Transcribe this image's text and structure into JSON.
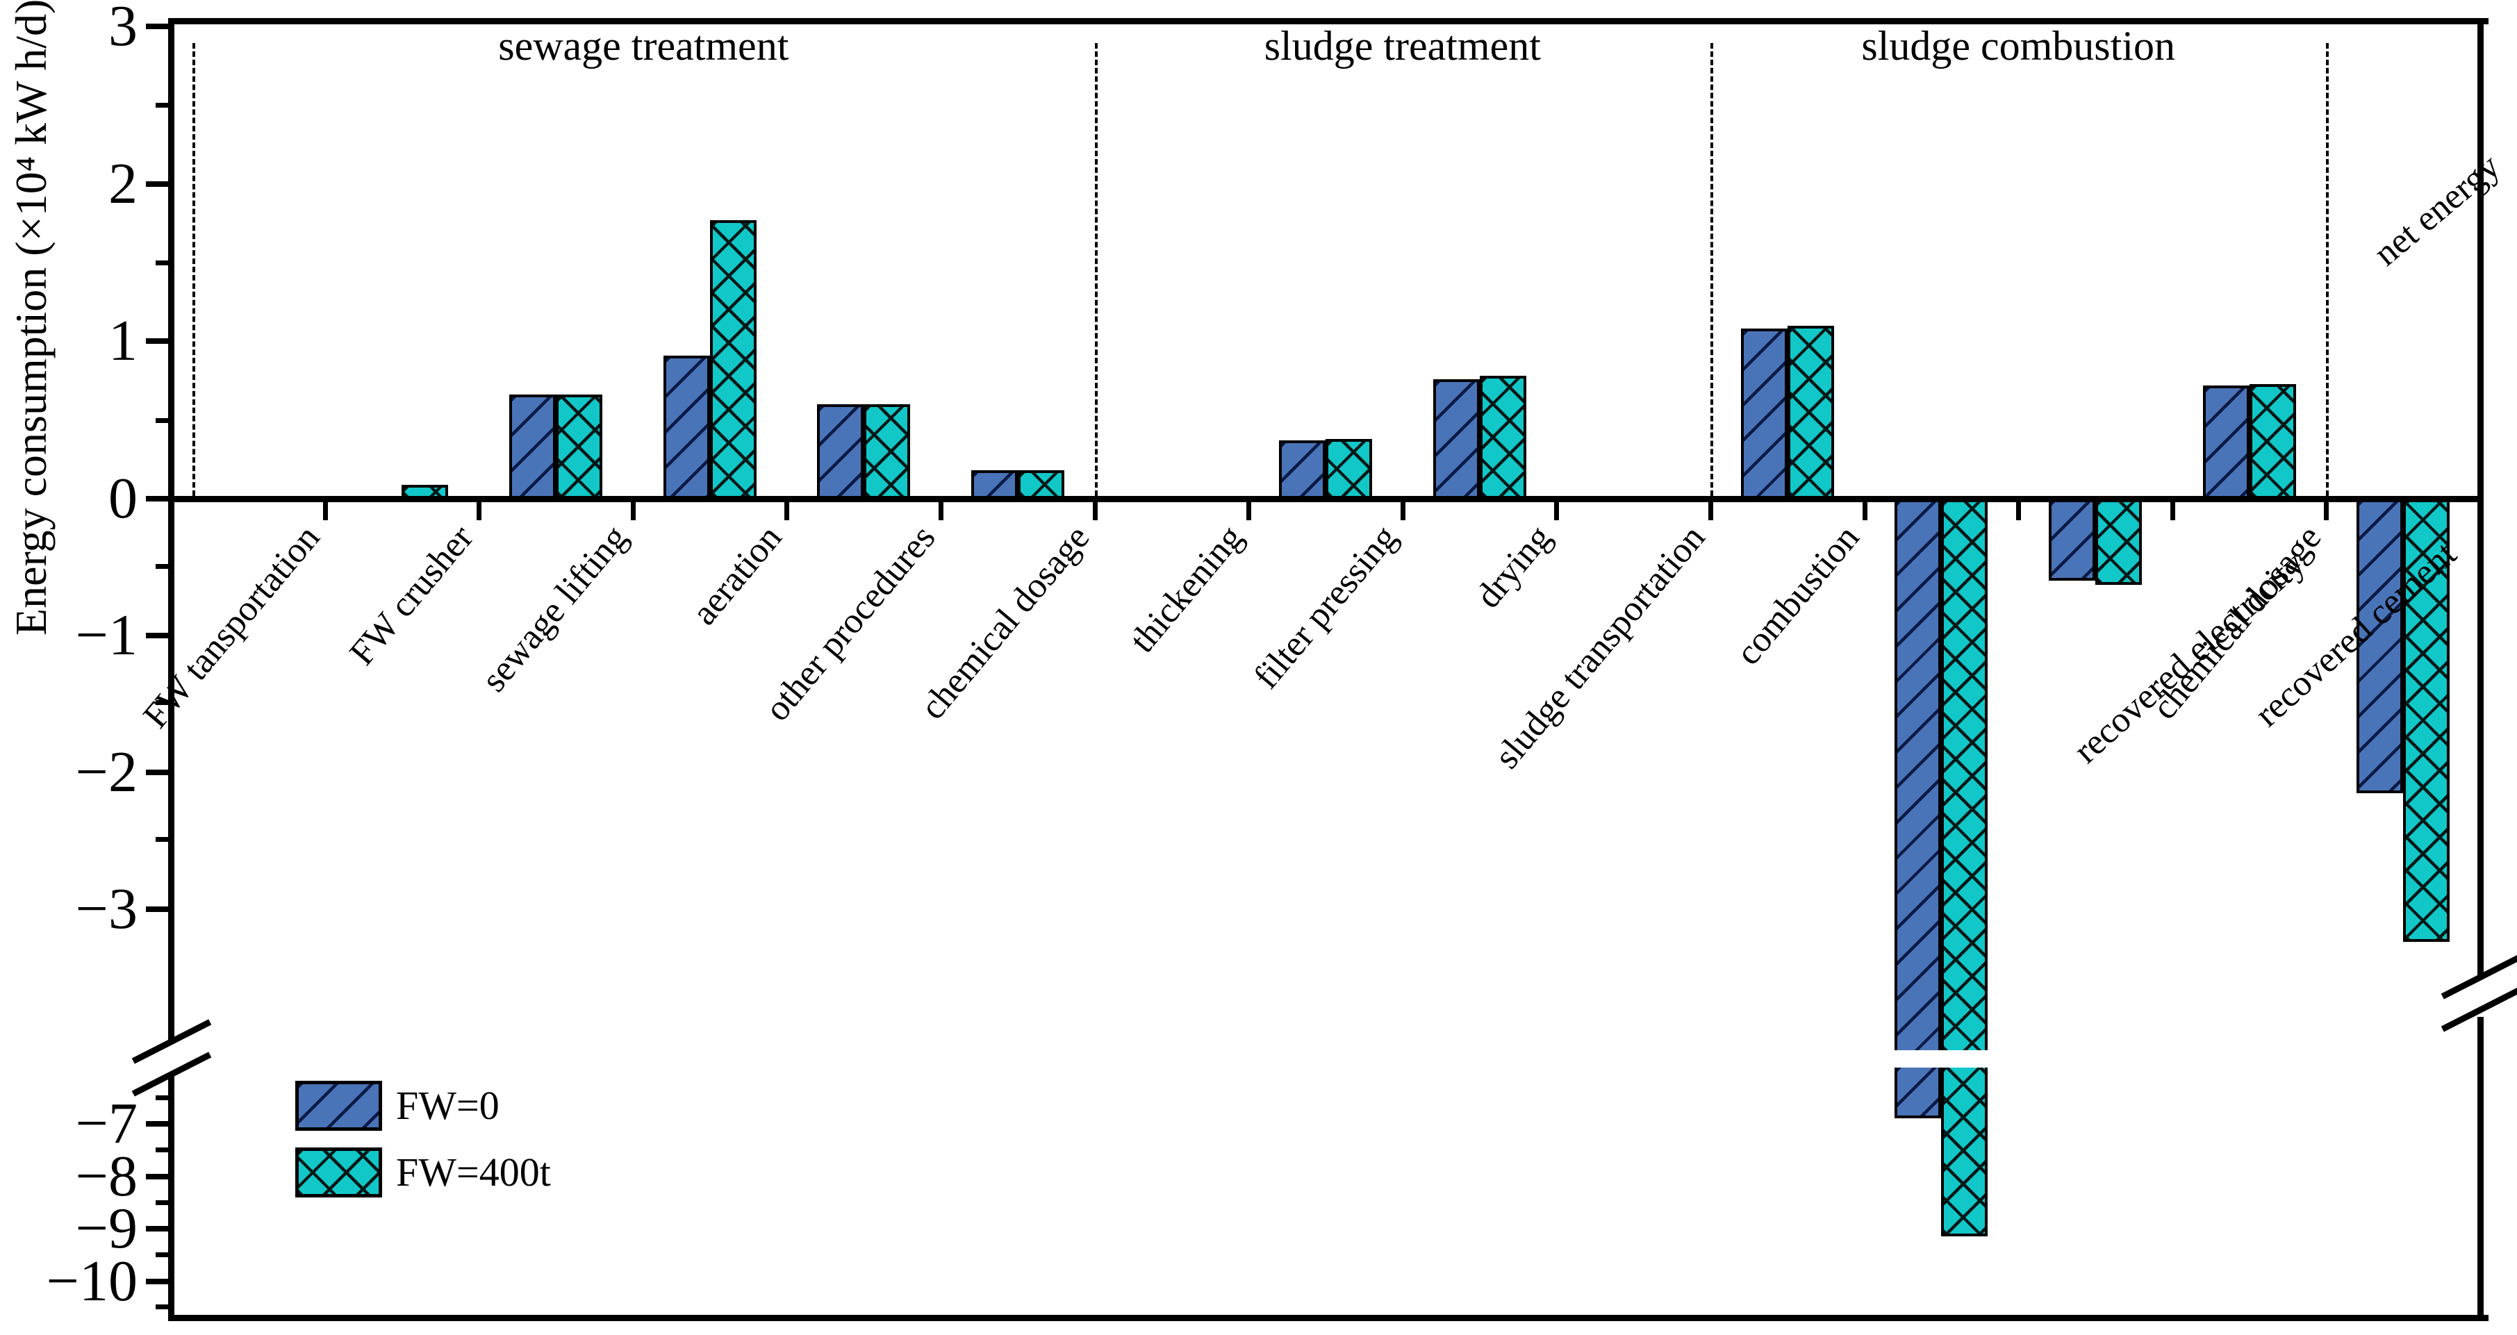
{
  "chart_data": {
    "type": "bar",
    "title": "",
    "ylabel": "Energy consumption (×10⁴ kW h/d)",
    "xlabel": "",
    "y_axis": {
      "broken": true,
      "upper_tick_values": [
        3,
        2,
        1,
        0,
        -1,
        -2,
        -3
      ],
      "upper_tick_labels": [
        "3",
        "2",
        "1",
        "0",
        "−1",
        "−2",
        "−3"
      ],
      "lower_tick_values": [
        -7,
        -8,
        -9,
        -10
      ],
      "lower_tick_labels": [
        "−7",
        "−8",
        "−9",
        "−10"
      ],
      "break_between": [
        -3,
        -7
      ]
    },
    "sections": [
      {
        "label": "sewage treatment",
        "start": 0,
        "end": 6
      },
      {
        "label": "sludge treatment",
        "start": 6,
        "end": 10
      },
      {
        "label": "sludge combustion",
        "start": 10,
        "end": 14
      }
    ],
    "categories": [
      "FW tansportation",
      "FW crusher",
      "sewage lifting",
      "aeration",
      "other procedures",
      "chemical dosage",
      "thickening",
      "filter pressing",
      "drying",
      "sludge transportation",
      "combustion",
      "recovered electricity",
      "recovered cement",
      "chemical dosage",
      "net energy"
    ],
    "series": [
      {
        "name": "FW=0",
        "color": "#4a74b8",
        "values": [
          0,
          0,
          0.66,
          0.91,
          0.6,
          0.18,
          0,
          0.37,
          0.76,
          0,
          1.08,
          -6.9,
          -0.6,
          0.72,
          -2.15
        ]
      },
      {
        "name": "FW=400t",
        "color": "#12c7c7",
        "values": [
          0,
          0.09,
          0.66,
          1.77,
          0.6,
          0.18,
          0,
          0.38,
          0.78,
          0,
          1.1,
          -9.15,
          -0.63,
          0.73,
          -3.24
        ]
      }
    ],
    "legend_position": "lower left",
    "grid": "off"
  }
}
